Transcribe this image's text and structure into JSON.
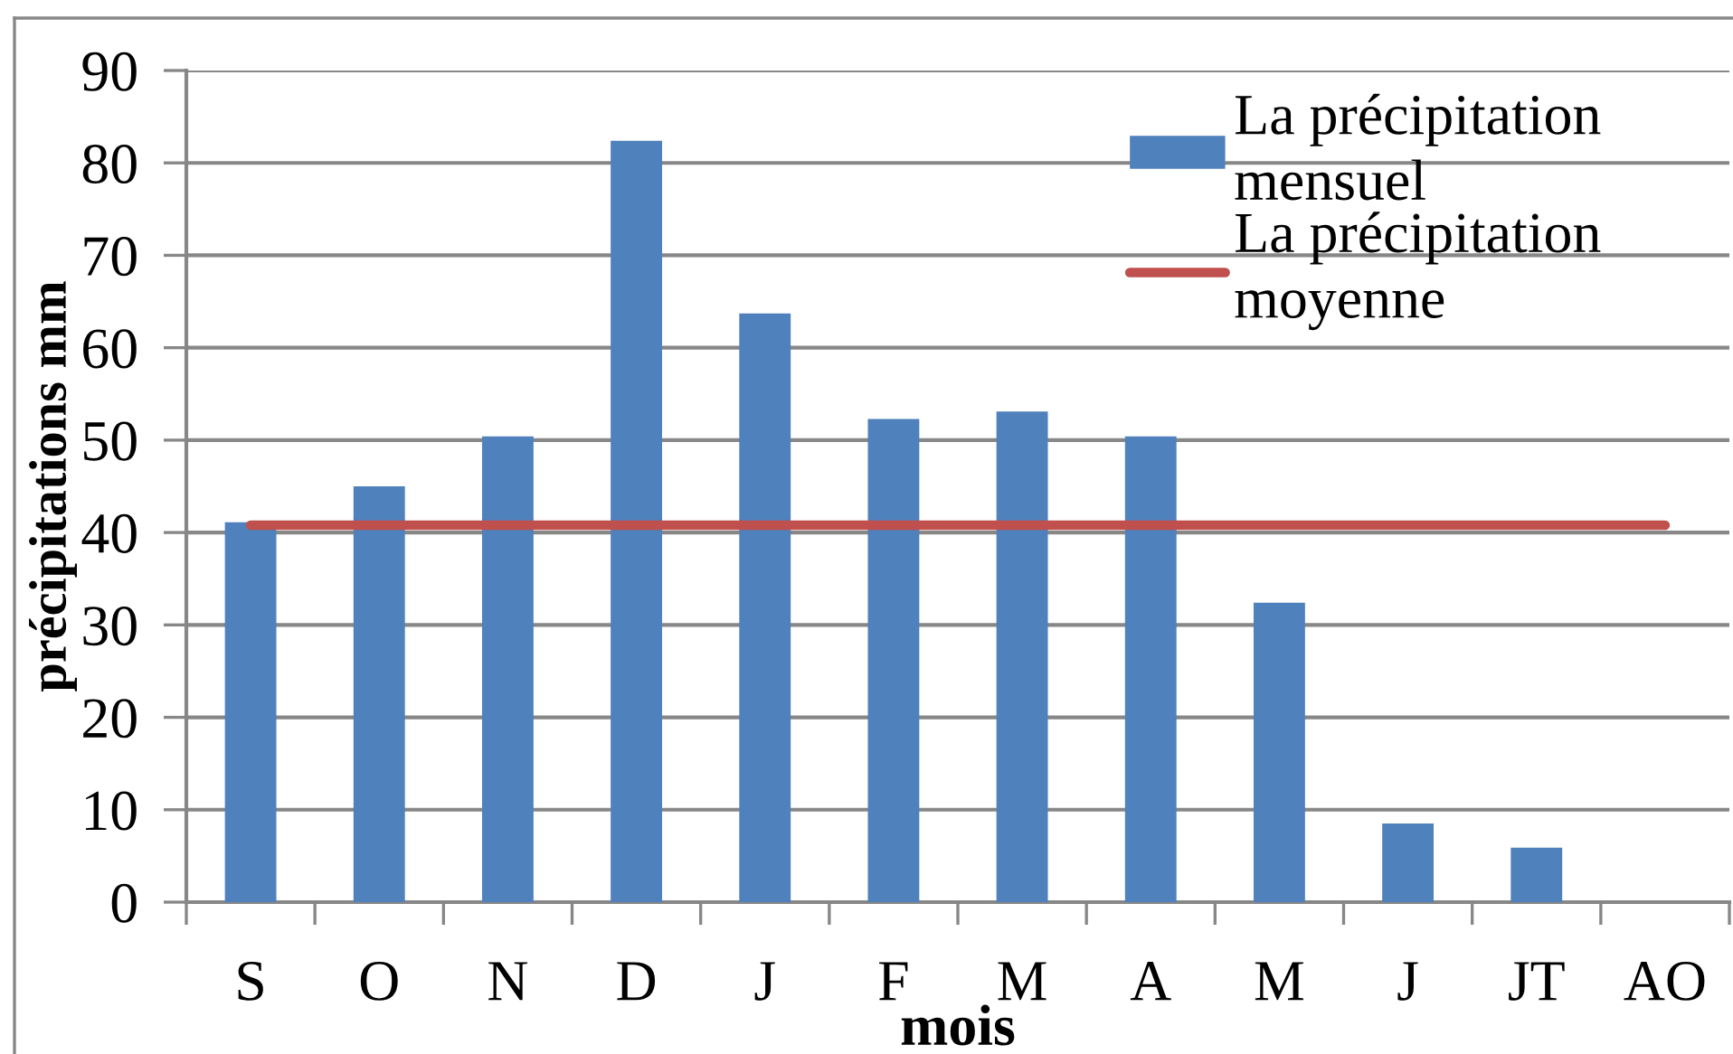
{
  "chart_data": {
    "type": "bar",
    "categories": [
      "S",
      "O",
      "N",
      "D",
      "J",
      "F",
      "M",
      "A",
      "M",
      "J",
      "JT",
      "AO"
    ],
    "series": [
      {
        "name": "La précipitation mensuel",
        "color": "#4f81bd",
        "values": [
          41.1,
          45.0,
          50.4,
          82.4,
          63.7,
          52.3,
          53.1,
          50.4,
          32.4,
          8.5,
          5.9,
          0
        ]
      },
      {
        "name": "La précipitation moyenne",
        "type": "line",
        "color": "#c0504d",
        "values": [
          40.8,
          40.8,
          40.8,
          40.8,
          40.8,
          40.8,
          40.8,
          40.8,
          40.8,
          40.8,
          40.8,
          40.8
        ]
      }
    ],
    "xlabel": "mois",
    "ylabel": "précipitations mm",
    "ylim": [
      0,
      90
    ],
    "yticks": [
      0,
      10,
      20,
      30,
      40,
      50,
      60,
      70,
      80,
      90
    ],
    "grid": "y",
    "legend": "top right"
  }
}
